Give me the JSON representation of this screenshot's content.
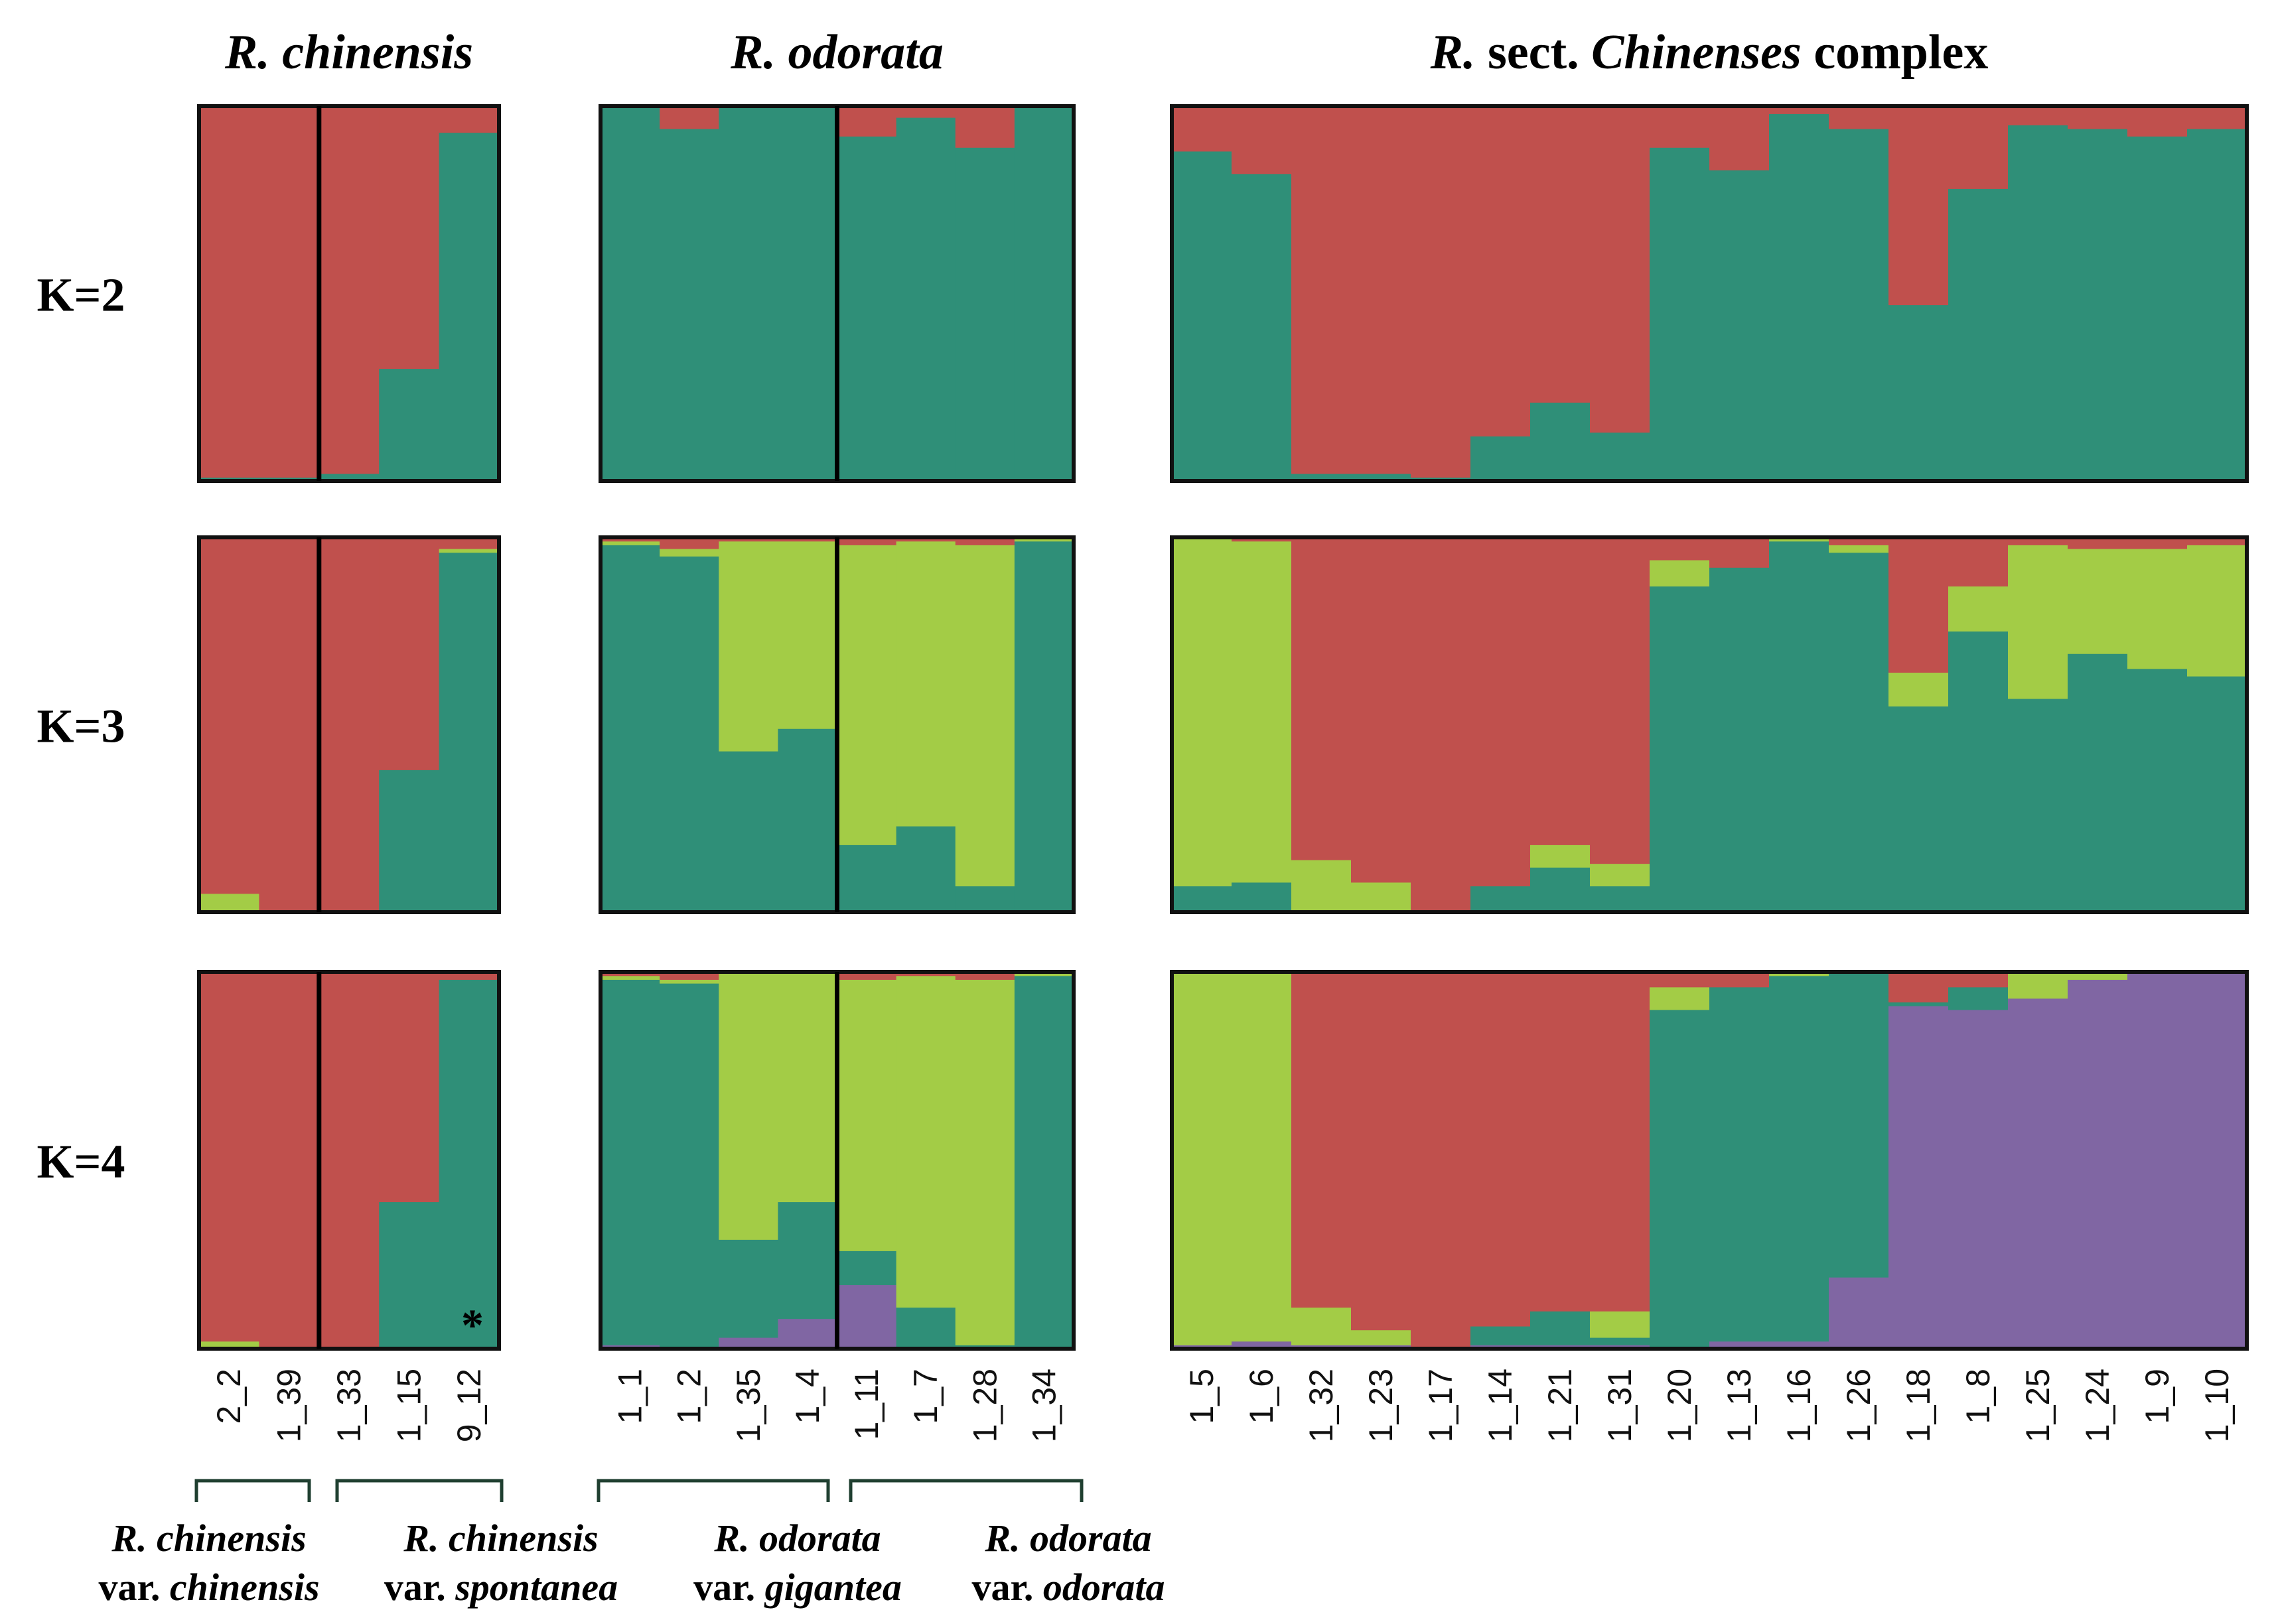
{
  "chart_data": {
    "type": "stacked-bar (STRUCTURE admixture plot)",
    "colors": {
      "c1": "#C0504D",
      "c2": "#2F8F78",
      "c3": "#A3CC46",
      "c4": "#8066A3"
    },
    "group_titles": [
      {
        "parts": [
          {
            "text": "R. chinensis",
            "italic": true
          }
        ]
      },
      {
        "parts": [
          {
            "text": "R. odorata",
            "italic": true
          }
        ]
      },
      {
        "parts": [
          {
            "text": "R.",
            "italic": true
          },
          {
            "text": " sect. ",
            "italic": false
          },
          {
            "text": "Chinenses",
            "italic": true
          },
          {
            "text": " complex",
            "italic": false
          }
        ]
      }
    ],
    "k_labels": [
      "K=2",
      "K=3",
      "K=4"
    ],
    "marker": "*",
    "panels": [
      {
        "samples": [
          "2_2",
          "1_39",
          "1_33",
          "1_15",
          "9_12"
        ],
        "dividers_after": [
          2
        ],
        "K2": [
          [
            0.99,
            0.01
          ],
          [
            0.99,
            0.01
          ],
          [
            0.98,
            0.02
          ],
          [
            0.7,
            0.3
          ],
          [
            0.07,
            0.93
          ]
        ],
        "K3": [
          [
            0.95,
            0.0,
            0.05
          ],
          [
            1.0,
            0.0,
            0.0
          ],
          [
            1.0,
            0.0,
            0.0
          ],
          [
            0.62,
            0.38,
            0.0
          ],
          [
            0.03,
            0.96,
            0.01
          ]
        ],
        "K4": [
          [
            0.98,
            0.0,
            0.02,
            0.0
          ],
          [
            1.0,
            0.0,
            0.0,
            0.0
          ],
          [
            1.0,
            0.0,
            0.0,
            0.0
          ],
          [
            0.61,
            0.39,
            0.0,
            0.0
          ],
          [
            0.02,
            0.98,
            0.0,
            0.0
          ]
        ]
      },
      {
        "samples": [
          "1_1",
          "1_2",
          "1_35",
          "1_4",
          "1_11",
          "1_7",
          "1_28",
          "1_34"
        ],
        "dividers_after": [
          4
        ],
        "K2": [
          [
            0.0,
            1.0
          ],
          [
            0.06,
            0.94
          ],
          [
            0.0,
            1.0
          ],
          [
            0.0,
            1.0
          ],
          [
            0.08,
            0.92
          ],
          [
            0.03,
            0.97
          ],
          [
            0.11,
            0.89
          ],
          [
            0.0,
            1.0
          ]
        ],
        "K3": [
          [
            0.01,
            0.98,
            0.01
          ],
          [
            0.03,
            0.95,
            0.02
          ],
          [
            0.01,
            0.43,
            0.56
          ],
          [
            0.01,
            0.49,
            0.5
          ],
          [
            0.02,
            0.18,
            0.8
          ],
          [
            0.01,
            0.23,
            0.76
          ],
          [
            0.02,
            0.07,
            0.91
          ],
          [
            0.0,
            0.99,
            0.01
          ]
        ],
        "K4": [
          [
            0.01,
            0.97,
            0.01,
            0.01
          ],
          [
            0.02,
            0.97,
            0.01,
            0.0
          ],
          [
            0.0,
            0.26,
            0.71,
            0.03
          ],
          [
            0.0,
            0.31,
            0.61,
            0.08
          ],
          [
            0.02,
            0.09,
            0.72,
            0.17
          ],
          [
            0.01,
            0.11,
            0.88,
            0.0
          ],
          [
            0.02,
            0.01,
            0.97,
            0.0
          ],
          [
            0.0,
            0.99,
            0.01,
            0.0
          ]
        ]
      },
      {
        "samples": [
          "1_5",
          "1_6",
          "1_32",
          "1_23",
          "1_17",
          "1_14",
          "1_21",
          "1_31",
          "1_20",
          "1_13",
          "1_16",
          "1_26",
          "1_18",
          "1_8",
          "1_25",
          "1_24",
          "1_9",
          "1_10"
        ],
        "dividers_after": [],
        "K2": [
          [
            0.12,
            0.88
          ],
          [
            0.18,
            0.82
          ],
          [
            0.98,
            0.02
          ],
          [
            0.98,
            0.02
          ],
          [
            0.99,
            0.01
          ],
          [
            0.88,
            0.12
          ],
          [
            0.79,
            0.21
          ],
          [
            0.87,
            0.13
          ],
          [
            0.11,
            0.89
          ],
          [
            0.17,
            0.83
          ],
          [
            0.02,
            0.98
          ],
          [
            0.06,
            0.94
          ],
          [
            0.53,
            0.47
          ],
          [
            0.22,
            0.78
          ],
          [
            0.05,
            0.95
          ],
          [
            0.06,
            0.94
          ],
          [
            0.08,
            0.92
          ],
          [
            0.06,
            0.94
          ]
        ],
        "K3": [
          [
            0.0,
            0.07,
            0.93
          ],
          [
            0.01,
            0.08,
            0.91
          ],
          [
            0.86,
            0.0,
            0.14
          ],
          [
            0.92,
            0.0,
            0.08
          ],
          [
            1.0,
            0.0,
            0.0
          ],
          [
            0.93,
            0.07,
            0.0
          ],
          [
            0.82,
            0.12,
            0.06
          ],
          [
            0.87,
            0.07,
            0.06
          ],
          [
            0.06,
            0.87,
            0.07
          ],
          [
            0.08,
            0.92,
            0.0
          ],
          [
            0.0,
            0.99,
            0.01
          ],
          [
            0.02,
            0.96,
            0.02
          ],
          [
            0.36,
            0.55,
            0.09
          ],
          [
            0.13,
            0.75,
            0.12
          ],
          [
            0.02,
            0.57,
            0.41
          ],
          [
            0.03,
            0.69,
            0.28
          ],
          [
            0.03,
            0.65,
            0.32
          ],
          [
            0.02,
            0.63,
            0.35
          ]
        ],
        "K4": [
          [
            0.0,
            0.0,
            0.99,
            0.01
          ],
          [
            0.0,
            0.0,
            0.98,
            0.02
          ],
          [
            0.89,
            0.0,
            0.1,
            0.01
          ],
          [
            0.95,
            0.0,
            0.04,
            0.01
          ],
          [
            1.0,
            0.0,
            0.0,
            0.0
          ],
          [
            0.94,
            0.05,
            0.0,
            0.01
          ],
          [
            0.9,
            0.09,
            0.0,
            0.01
          ],
          [
            0.9,
            0.02,
            0.07,
            0.01
          ],
          [
            0.04,
            0.9,
            0.06,
            0.0
          ],
          [
            0.04,
            0.94,
            0.0,
            0.02
          ],
          [
            0.0,
            0.97,
            0.01,
            0.02
          ],
          [
            0.0,
            0.81,
            0.0,
            0.19
          ],
          [
            0.08,
            0.01,
            0.0,
            0.91
          ],
          [
            0.04,
            0.06,
            0.0,
            0.9
          ],
          [
            0.0,
            0.0,
            0.07,
            0.93
          ],
          [
            0.0,
            0.0,
            0.02,
            0.98
          ],
          [
            0.0,
            0.0,
            0.0,
            1.0
          ],
          [
            0.0,
            0.0,
            0.0,
            1.0
          ]
        ]
      }
    ],
    "footer_groups": [
      {
        "line1": [
          {
            "text": "R. chinensis",
            "italic": true
          }
        ],
        "line2": [
          {
            "text": "var. ",
            "italic": false
          },
          {
            "text": "chinensis",
            "italic": true
          }
        ]
      },
      {
        "line1": [
          {
            "text": "R. chinensis",
            "italic": true
          }
        ],
        "line2": [
          {
            "text": "var. ",
            "italic": false
          },
          {
            "text": "spontanea",
            "italic": true
          }
        ]
      },
      {
        "line1": [
          {
            "text": "R. odorata",
            "italic": true
          }
        ],
        "line2": [
          {
            "text": "var.  ",
            "italic": false
          },
          {
            "text": "gigantea",
            "italic": true
          }
        ]
      },
      {
        "line1": [
          {
            "text": "R. odorata",
            "italic": true
          }
        ],
        "line2": [
          {
            "text": "var. ",
            "italic": false
          },
          {
            "text": "odorata",
            "italic": true
          }
        ]
      }
    ]
  }
}
